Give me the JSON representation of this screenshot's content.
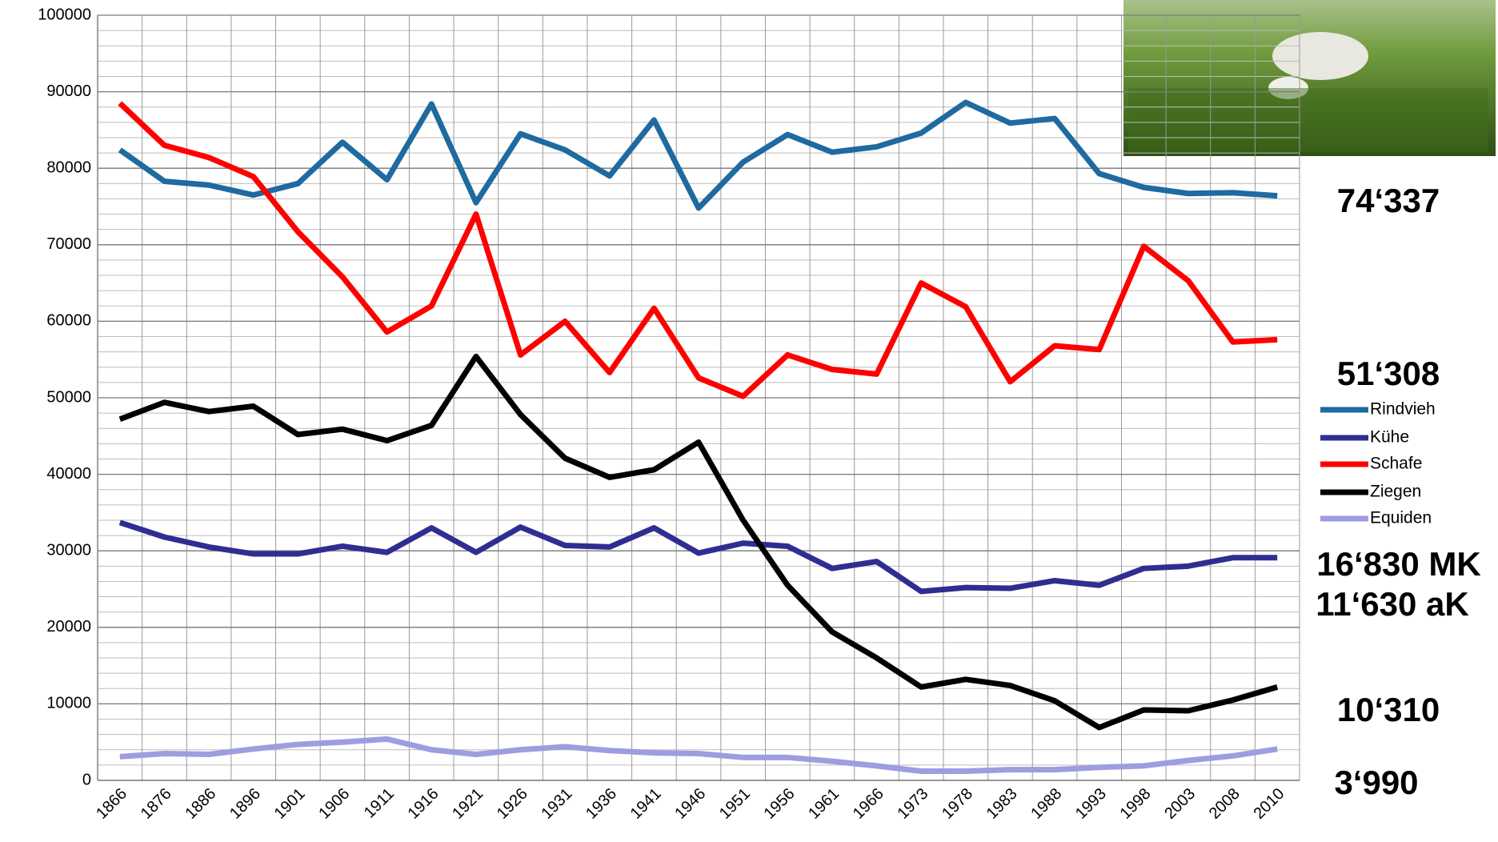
{
  "chart_data": {
    "type": "line",
    "categories": [
      "1866",
      "1876",
      "1886",
      "1896",
      "1901",
      "1906",
      "1911",
      "1916",
      "1921",
      "1926",
      "1931",
      "1936",
      "1941",
      "1946",
      "1951",
      "1956",
      "1961",
      "1966",
      "1973",
      "1978",
      "1983",
      "1988",
      "1993",
      "1998",
      "2003",
      "2008",
      "2010"
    ],
    "series": [
      {
        "name": "Rindvieh",
        "color": "#1f6aa0",
        "values": [
          82400,
          78300,
          77800,
          76500,
          78000,
          83400,
          78500,
          88400,
          75500,
          84500,
          82400,
          79000,
          86300,
          74800,
          80800,
          84400,
          82100,
          82800,
          84600,
          88600,
          85900,
          86500,
          79300,
          77500,
          76700,
          76800,
          76400
        ]
      },
      {
        "name": "Kühe",
        "color": "#2e2e92",
        "values": [
          33700,
          31800,
          30500,
          29600,
          29600,
          30600,
          29800,
          33000,
          29800,
          33100,
          30700,
          30500,
          33000,
          29700,
          31000,
          30600,
          27700,
          28600,
          24700,
          25200,
          25100,
          26100,
          25500,
          27700,
          28000,
          29100,
          29100
        ]
      },
      {
        "name": "Schafe",
        "color": "#ff0000",
        "values": [
          88500,
          83000,
          81400,
          78900,
          71700,
          65800,
          58600,
          62000,
          74000,
          55600,
          60000,
          53300,
          61700,
          52600,
          50200,
          55600,
          53700,
          53100,
          65000,
          61900,
          52100,
          56800,
          56300,
          69800,
          65300,
          57300,
          57600
        ]
      },
      {
        "name": "Ziegen",
        "color": "#000000",
        "values": [
          47200,
          49400,
          48200,
          48900,
          45200,
          45900,
          44400,
          46400,
          55400,
          47800,
          42100,
          39600,
          40600,
          44200,
          34000,
          25500,
          19400,
          16000,
          12200,
          13200,
          12400,
          10400,
          6900,
          9200,
          9100,
          10500,
          12200
        ]
      },
      {
        "name": "Equiden",
        "color": "#9d9de0",
        "values": [
          3100,
          3500,
          3400,
          4100,
          4700,
          5000,
          5400,
          4000,
          3400,
          4000,
          4400,
          3900,
          3600,
          3500,
          3000,
          3000,
          2500,
          1900,
          1200,
          1200,
          1400,
          1400,
          1700,
          1900,
          2600,
          3200,
          4100
        ]
      }
    ],
    "ylim": [
      0,
      100000
    ],
    "yticks": [
      0,
      10000,
      20000,
      30000,
      40000,
      50000,
      60000,
      70000,
      80000,
      90000,
      100000
    ],
    "grid": true,
    "legend": "right",
    "annotations": [
      "74‘337",
      "51‘308",
      "16‘830 MK",
      "11‘630 aK",
      "10‘310",
      "3‘990"
    ]
  }
}
